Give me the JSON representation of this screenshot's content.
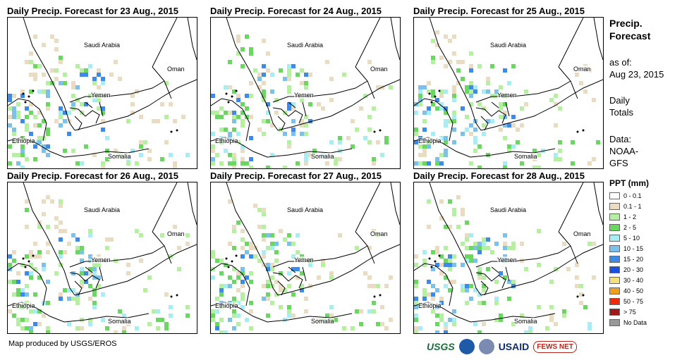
{
  "panels": [
    {
      "title": "Daily Precip. Forecast for 23 Aug., 2015",
      "seed": 11
    },
    {
      "title": "Daily Precip. Forecast for 24 Aug., 2015",
      "seed": 27
    },
    {
      "title": "Daily Precip. Forecast for 25 Aug., 2015",
      "seed": 43
    },
    {
      "title": "Daily Precip. Forecast for 26 Aug., 2015",
      "seed": 59
    },
    {
      "title": "Daily Precip. Forecast for 27 Aug., 2015",
      "seed": 71
    },
    {
      "title": "Daily Precip. Forecast for 28 Aug., 2015",
      "seed": 89
    }
  ],
  "map_labels": {
    "saudi": "Saudi Arabia",
    "oman": "Oman",
    "yemen": "Yemen",
    "ethiopia": "Ethiopia",
    "somalia": "Somalia"
  },
  "sidebar": {
    "title_line1": "Precip.",
    "title_line2": "Forecast",
    "asof_line1": "as of:",
    "asof_line2": "Aug 23, 2015",
    "totals_line1": "Daily",
    "totals_line2": "Totals",
    "data_line1": "Data:",
    "data_line2": "NOAA-",
    "data_line3": "GFS"
  },
  "legend": {
    "title": "PPT (mm)",
    "items": [
      {
        "label": "0 - 0.1",
        "color": "#ffffff"
      },
      {
        "label": "0.1 - 1",
        "color": "#eadcc2"
      },
      {
        "label": "1 - 2",
        "color": "#b4f0a0"
      },
      {
        "label": "2 - 5",
        "color": "#6ad860"
      },
      {
        "label": "5 - 10",
        "color": "#a8ecf4"
      },
      {
        "label": "10 - 15",
        "color": "#7cc0ec"
      },
      {
        "label": "15 - 20",
        "color": "#3e8ae8"
      },
      {
        "label": "20 - 30",
        "color": "#1a50e0"
      },
      {
        "label": "30 - 40",
        "color": "#f4e07c"
      },
      {
        "label": "40 - 50",
        "color": "#f0a020"
      },
      {
        "label": "50 - 75",
        "color": "#f02a0a"
      },
      {
        "label": "> 75",
        "color": "#a01818"
      },
      {
        "label": "No Data",
        "color": "#999999"
      }
    ]
  },
  "credit": "Map produced by USGS/EROS",
  "logos": {
    "usgs": "USGS",
    "usaid": "USAID",
    "fews": "FEWS NET"
  }
}
